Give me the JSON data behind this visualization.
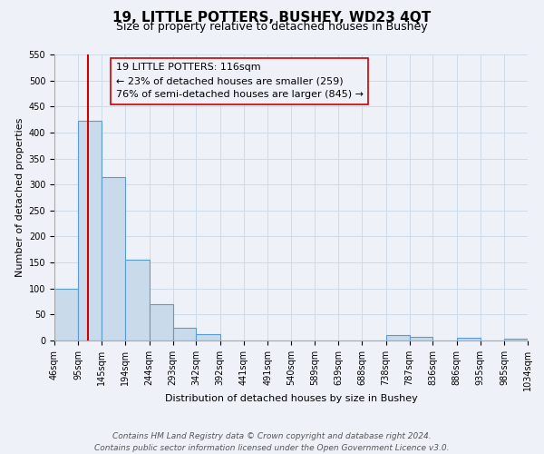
{
  "title": "19, LITTLE POTTERS, BUSHEY, WD23 4QT",
  "subtitle": "Size of property relative to detached houses in Bushey",
  "xlabel": "Distribution of detached houses by size in Bushey",
  "ylabel": "Number of detached properties",
  "footer_line1": "Contains HM Land Registry data © Crown copyright and database right 2024.",
  "footer_line2": "Contains public sector information licensed under the Open Government Licence v3.0.",
  "annotation_title": "19 LITTLE POTTERS: 116sqm",
  "annotation_line1": "← 23% of detached houses are smaller (259)",
  "annotation_line2": "76% of semi-detached houses are larger (845) →",
  "bins": [
    46,
    95,
    145,
    194,
    244,
    293,
    342,
    392,
    441,
    491,
    540,
    589,
    639,
    688,
    738,
    787,
    836,
    886,
    935,
    985,
    1034
  ],
  "bin_labels": [
    "46sqm",
    "95sqm",
    "145sqm",
    "194sqm",
    "244sqm",
    "293sqm",
    "342sqm",
    "392sqm",
    "441sqm",
    "491sqm",
    "540sqm",
    "589sqm",
    "639sqm",
    "688sqm",
    "738sqm",
    "787sqm",
    "836sqm",
    "886sqm",
    "935sqm",
    "985sqm",
    "1034sqm"
  ],
  "counts": [
    100,
    422,
    315,
    155,
    70,
    25,
    13,
    0,
    0,
    0,
    0,
    0,
    0,
    0,
    10,
    7,
    0,
    5,
    0,
    3
  ],
  "bar_color": "#c9daea",
  "bar_edge_color": "#5b9bd5",
  "bar_edge_width": 0.8,
  "grid_color": "#c8d8e8",
  "background_color": "#eef2f8",
  "vline_x": 116,
  "vline_color": "#cc0000",
  "ylim": [
    0,
    550
  ],
  "yticks": [
    0,
    50,
    100,
    150,
    200,
    250,
    300,
    350,
    400,
    450,
    500,
    550
  ],
  "title_fontsize": 11,
  "subtitle_fontsize": 9,
  "axis_label_fontsize": 8,
  "tick_fontsize": 7,
  "annotation_fontsize": 8,
  "footer_fontsize": 6.5
}
